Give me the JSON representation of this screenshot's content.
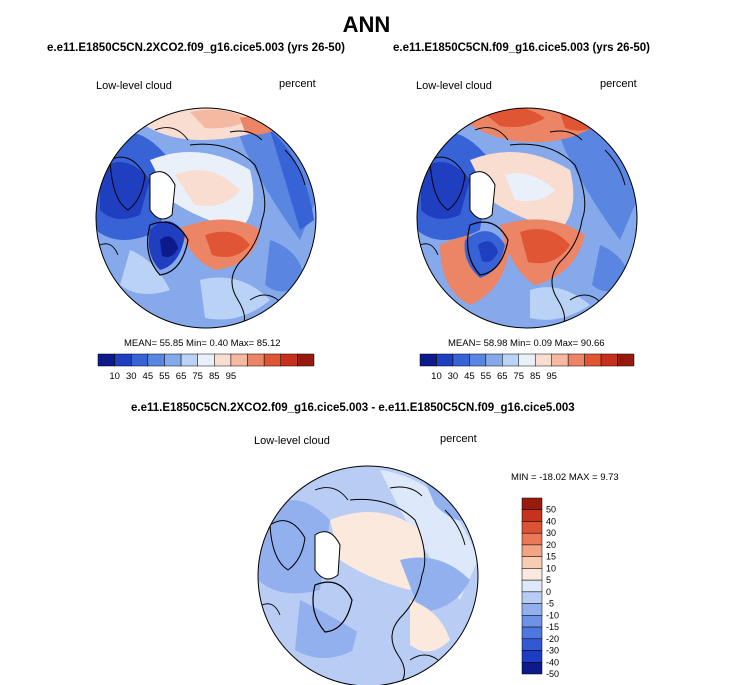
{
  "page": {
    "title": "ANN"
  },
  "colors": {
    "land_outline": "#000000",
    "abs_scale": [
      "#0c1a8c",
      "#1f3fc0",
      "#3763d6",
      "#5a85e1",
      "#86a9ec",
      "#b9d2f5",
      "#eaf0fa",
      "#f8ddd0",
      "#f4b9a0",
      "#ec8566",
      "#e05533",
      "#c7301c",
      "#961a0c"
    ],
    "diff_scale": [
      "#0c1a8c",
      "#1c3cc4",
      "#3259d4",
      "#4f78de",
      "#6e93e6",
      "#92b0ee",
      "#b8ccf4",
      "#dde8fa",
      "#fbe9de",
      "#f8cbb3",
      "#f2a584",
      "#ea7a57",
      "#dc5232",
      "#c6321c",
      "#9a1a0c"
    ]
  },
  "panels": [
    {
      "id": "left",
      "case_title": "e.e11.E1850C5CN.2XCO2.f09_g16.cice5.003 (yrs 26-50)",
      "variable": "Low-level cloud",
      "units": "percent",
      "stats": "MEAN=  55.85  Min=   0.40  Max=  85.12"
    },
    {
      "id": "right",
      "case_title": "e.e11.E1850C5CN.f09_g16.cice5.003 (yrs 26-50)",
      "variable": "Low-level cloud",
      "units": "percent",
      "stats": "MEAN=  58.98  Min=   0.09  Max=  90.66"
    }
  ],
  "diff_panel": {
    "case_title": "e.e11.E1850C5CN.2XCO2.f09_g16.cice5.003 - e.e11.E1850C5CN.f09_g16.cice5.003",
    "variable": "Low-level cloud",
    "units": "percent",
    "stats": "MIN = -18.02 MAX =   9.73"
  },
  "chart_data": [
    {
      "type": "heatmap",
      "title": "e.e11.E1850C5CN.2XCO2.f09_g16.cice5.003 (yrs 26-50)",
      "field": "Low-level cloud",
      "units": "percent",
      "projection": "north polar stereographic",
      "mean": 55.85,
      "min": 0.4,
      "max": 85.12,
      "colorbar_levels": [
        10,
        30,
        45,
        55,
        65,
        75,
        85,
        95
      ],
      "colorbar_labels": [
        "10",
        "30",
        "45",
        "55",
        "65",
        "75",
        "85",
        "95"
      ],
      "colorbar_orientation": "horizontal"
    },
    {
      "type": "heatmap",
      "title": "e.e11.E1850C5CN.f09_g16.cice5.003 (yrs 26-50)",
      "field": "Low-level cloud",
      "units": "percent",
      "projection": "north polar stereographic",
      "mean": 58.98,
      "min": 0.09,
      "max": 90.66,
      "colorbar_levels": [
        10,
        30,
        45,
        55,
        65,
        75,
        85,
        95
      ],
      "colorbar_labels": [
        "10",
        "30",
        "45",
        "55",
        "65",
        "75",
        "85",
        "95"
      ],
      "colorbar_orientation": "horizontal"
    },
    {
      "type": "heatmap",
      "title": "e.e11.E1850C5CN.2XCO2.f09_g16.cice5.003 - e.e11.E1850C5CN.f09_g16.cice5.003",
      "field": "Low-level cloud",
      "units": "percent",
      "projection": "north polar stereographic",
      "min": -18.02,
      "max": 9.73,
      "colorbar_levels": [
        50,
        40,
        30,
        20,
        15,
        10,
        5,
        0,
        -5,
        -10,
        -15,
        -20,
        -30,
        -40,
        -50
      ],
      "colorbar_labels": [
        "50",
        "40",
        "30",
        "20",
        "15",
        "10",
        "5",
        "0",
        "-5",
        "-10",
        "-15",
        "-20",
        "-30",
        "-40",
        "-50"
      ],
      "colorbar_orientation": "vertical"
    }
  ]
}
